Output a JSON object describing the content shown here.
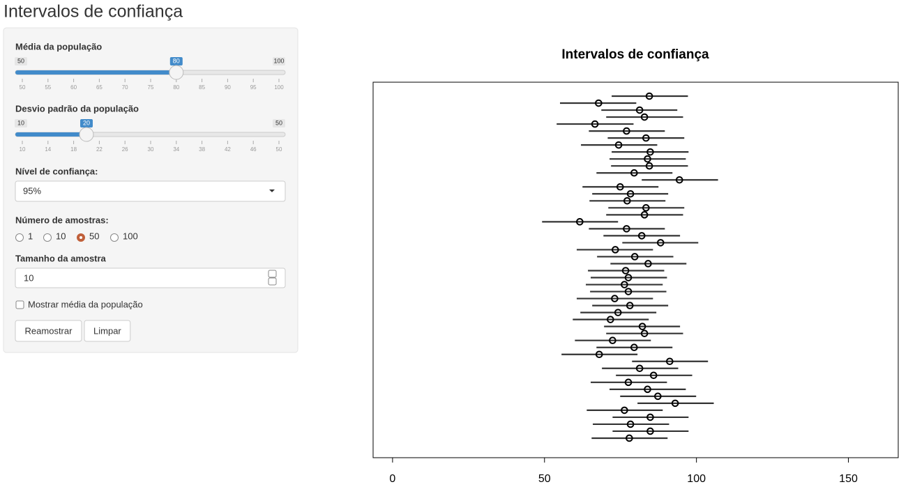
{
  "header": {
    "title": "Intervalos de confiança"
  },
  "sidebar": {
    "mean_slider": {
      "label": "Média da população",
      "min": 50,
      "max": 100,
      "value": 80,
      "ticks": [
        50,
        55,
        60,
        65,
        70,
        75,
        80,
        85,
        90,
        95,
        100
      ]
    },
    "sd_slider": {
      "label": "Desvio padrão da população",
      "min": 10,
      "max": 50,
      "value": 20,
      "ticks": [
        10,
        14,
        18,
        22,
        26,
        30,
        34,
        38,
        42,
        46,
        50
      ]
    },
    "confidence": {
      "label": "Nível de confiança:",
      "value": "95%"
    },
    "samples": {
      "label": "Número de amostras:",
      "options": [
        "1",
        "10",
        "50",
        "100"
      ],
      "selected": "50"
    },
    "sample_size": {
      "label": "Tamanho da amostra",
      "value": "10"
    },
    "show_mean": {
      "label": "Mostrar média da população",
      "checked": false
    },
    "buttons": [
      "Reamostrar",
      "Limpar"
    ]
  },
  "chart_data": {
    "type": "interval",
    "title": "Intervalos de confiança",
    "color": "#000000",
    "xlim": [
      -6.4,
      166.4
    ],
    "xticks": [
      0,
      50,
      100,
      150
    ],
    "mean": [
      84.5,
      67.8,
      81.3,
      82.9,
      66.6,
      77.0,
      83.4,
      74.4,
      84.8,
      83.9,
      84.5,
      79.5,
      94.4,
      74.9,
      78.3,
      77.2,
      83.4,
      82.9,
      61.6,
      77.0,
      82.0,
      88.2,
      73.3,
      79.7,
      84.1,
      76.7,
      77.6,
      76.3,
      77.6,
      73.1,
      78.1,
      74.2,
      71.7,
      82.2,
      82.9,
      72.4,
      79.5,
      68.0,
      91.2,
      81.3,
      85.9,
      77.6,
      83.9,
      87.3,
      93.0,
      76.3,
      84.8,
      78.3,
      84.8,
      77.9
    ],
    "lower": [
      72.1,
      55.1,
      68.7,
      70.3,
      54.0,
      64.6,
      70.8,
      62.0,
      72.1,
      71.4,
      71.9,
      67.1,
      82.0,
      62.5,
      65.7,
      64.8,
      71.0,
      70.3,
      49.2,
      64.6,
      69.4,
      75.6,
      60.6,
      67.3,
      71.7,
      64.3,
      65.2,
      63.6,
      65.0,
      60.6,
      65.7,
      61.8,
      59.3,
      69.6,
      70.3,
      60.0,
      67.1,
      55.6,
      78.8,
      68.9,
      73.5,
      65.2,
      71.4,
      74.9,
      80.6,
      63.9,
      72.4,
      65.9,
      72.4,
      65.5
    ],
    "upper": [
      97.2,
      80.2,
      93.7,
      95.6,
      79.3,
      89.6,
      96.0,
      87.1,
      97.4,
      96.5,
      97.2,
      92.1,
      107.1,
      87.5,
      90.7,
      89.8,
      96.0,
      95.6,
      74.2,
      89.6,
      94.6,
      100.6,
      85.7,
      92.4,
      96.7,
      89.4,
      90.3,
      88.9,
      90.1,
      85.7,
      90.7,
      86.8,
      84.3,
      94.6,
      95.6,
      85.0,
      92.1,
      80.6,
      103.8,
      94.0,
      98.6,
      90.3,
      96.5,
      99.9,
      105.7,
      88.9,
      97.4,
      91.0,
      97.4,
      90.5
    ]
  }
}
